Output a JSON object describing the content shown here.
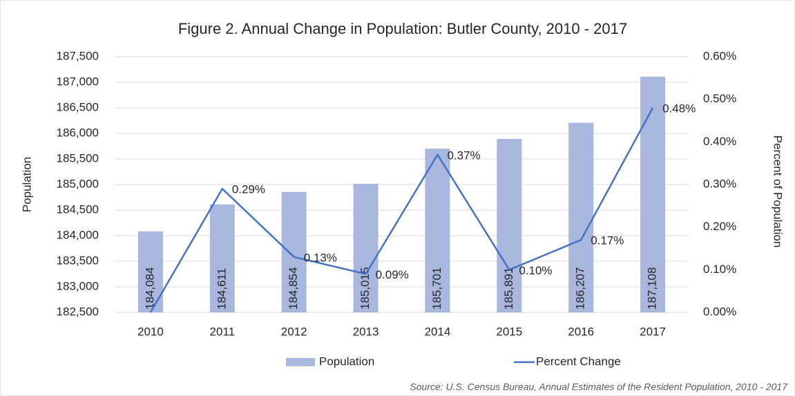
{
  "chart_data": {
    "type": "bar",
    "title": "Figure 2. Annual Change in Population: Butler County, 2010 - 2017",
    "categories": [
      "2010",
      "2011",
      "2012",
      "2013",
      "2014",
      "2015",
      "2016",
      "2017"
    ],
    "series": [
      {
        "name": "Population",
        "type": "bar",
        "color": "#a9b6dd",
        "values": [
          184084,
          184611,
          184854,
          185015,
          185701,
          185891,
          186207,
          187108
        ],
        "value_labels": [
          "184,084",
          "184,611",
          "184,854",
          "185,015",
          "185,701",
          "185,891",
          "186,207",
          "187,108"
        ]
      },
      {
        "name": "Percent Change",
        "type": "line",
        "axis": "y2",
        "color": "#4472c4",
        "values": [
          0,
          0.29,
          0.13,
          0.09,
          0.37,
          0.1,
          0.17,
          0.48
        ],
        "value_labels": [
          null,
          "0.29%",
          "0.13%",
          "0.09%",
          "0.37%",
          "0.10%",
          "0.17%",
          "0.48%"
        ]
      }
    ],
    "ylabel": "Population",
    "y2label": "Percent of Population",
    "ylim": [
      182500,
      187500
    ],
    "yticks": [
      {
        "value": 182500,
        "label": "182,500"
      },
      {
        "value": 183000,
        "label": "183,000"
      },
      {
        "value": 183500,
        "label": "183,500"
      },
      {
        "value": 184000,
        "label": "184,000"
      },
      {
        "value": 184500,
        "label": "184,500"
      },
      {
        "value": 185000,
        "label": "185,000"
      },
      {
        "value": 185500,
        "label": "185,500"
      },
      {
        "value": 186000,
        "label": "186,000"
      },
      {
        "value": 186500,
        "label": "186,500"
      },
      {
        "value": 187000,
        "label": "187,000"
      },
      {
        "value": 187500,
        "label": "187,500"
      }
    ],
    "y2lim": [
      0,
      0.6
    ],
    "y2ticks": [
      {
        "value": 0,
        "label": "0.00%"
      },
      {
        "value": 0.1,
        "label": "0.10%"
      },
      {
        "value": 0.2,
        "label": "0.20%"
      },
      {
        "value": 0.3,
        "label": "0.30%"
      },
      {
        "value": 0.4,
        "label": "0.40%"
      },
      {
        "value": 0.5,
        "label": "0.50%"
      },
      {
        "value": 0.6,
        "label": "0.60%"
      }
    ],
    "grid": true,
    "legend": "bottom",
    "source": "Source: U.S. Census Bureau, Annual Estimates of the Resident Population, 2010 - 2017"
  }
}
